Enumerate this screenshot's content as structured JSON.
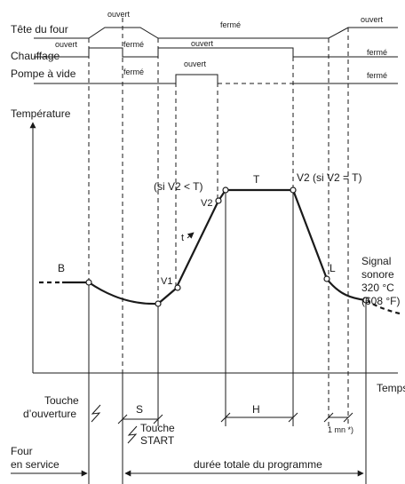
{
  "rows": {
    "row1": "Tête du four",
    "row2": "Chauffage",
    "row3": "Pompe à vide"
  },
  "states": {
    "r1_open_a": "ouvert",
    "r1_closed": "fermé",
    "r1_open_b": "ouvert",
    "r2_open_a": "ouvert",
    "r2_closed_a": "fermé",
    "r2_open_b": "ouvert",
    "r2_closed_b": "fermé",
    "r3_closed_a": "fermé",
    "r3_open": "ouvert",
    "r3_closed_b": "fermé"
  },
  "chart": {
    "ylabel": "Température",
    "xlabel": "Temps",
    "B": "B",
    "T": "T",
    "L": "L",
    "V1": "V1",
    "V2": "V2",
    "t": "t",
    "cond_lt": "(si V2 < T)",
    "cond_eq": "V2 (si V2 = T)",
    "signal": [
      "Signal",
      "sonore",
      "320 °C",
      "(608 °F)"
    ]
  },
  "bottom": {
    "touche_ouverture": [
      "Touche",
      "d’ouverture"
    ],
    "S": "S",
    "touche_start": [
      "Touche",
      "START"
    ],
    "H": "H",
    "one_min": "1 mn *)",
    "four_service": [
      "Four",
      "en service"
    ],
    "duree": "durée totale du programme"
  }
}
